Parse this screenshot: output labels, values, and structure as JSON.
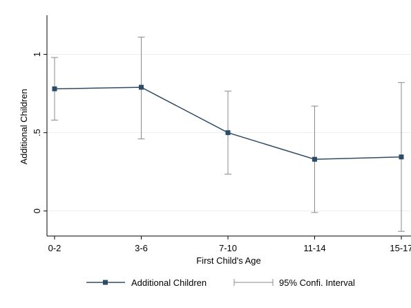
{
  "chart_data": {
    "type": "line",
    "categories": [
      "0-2",
      "3-6",
      "7-10",
      "11-14",
      "15-17"
    ],
    "category_tick_labels": [
      "0-2",
      "3-6",
      "7-10",
      "11-14",
      "15-17"
    ],
    "series": [
      {
        "name": "Additional Children",
        "values": [
          0.78,
          0.79,
          0.5,
          0.33,
          0.345
        ],
        "color": "#2e4b66",
        "marker": "square"
      }
    ],
    "error_bars": {
      "name": "95% Confi. Interval",
      "lower": [
        0.58,
        0.46,
        0.235,
        -0.01,
        -0.13
      ],
      "upper": [
        0.98,
        1.11,
        0.765,
        0.67,
        0.82
      ],
      "color": "#888888"
    },
    "xlabel": "First Child's Age",
    "ylabel": "Additional Children",
    "ylim": [
      -0.16,
      1.25
    ],
    "yticks": [
      0,
      0.5,
      1
    ],
    "ytick_labels": [
      "0",
      ".5",
      "1"
    ],
    "grid": true,
    "legend_position": "bottom"
  }
}
